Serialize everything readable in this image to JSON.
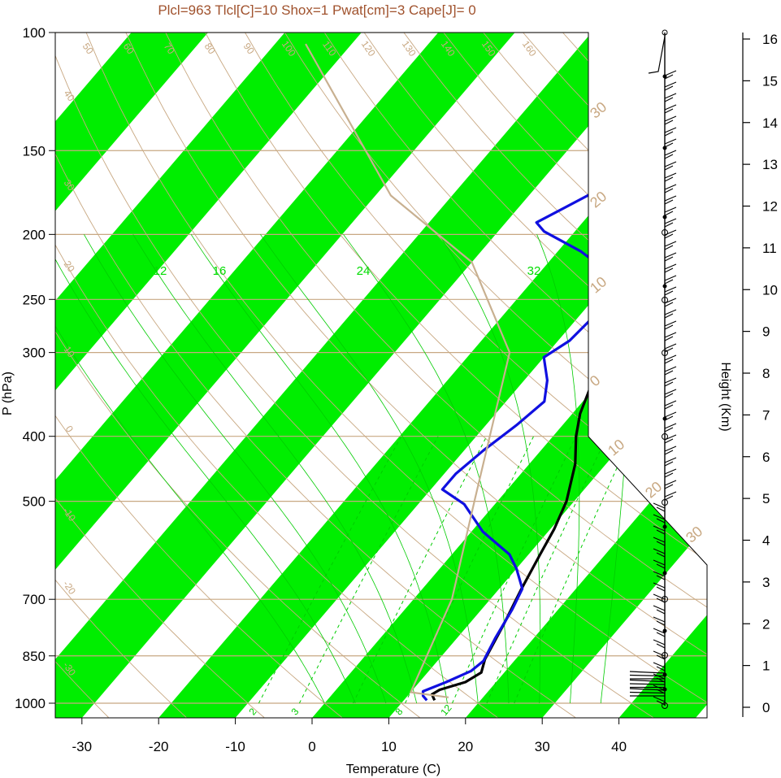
{
  "title": "Plcl=963 Tlcl[C]=10 Shox=1 Pwat[cm]=3 Cape[J]= 0",
  "colors": {
    "band": "#00ee00",
    "isobar": "#c8a882",
    "temperature": "#000000",
    "dewpoint": "#1010e0",
    "parcel": "#c8b090",
    "mixing_ratio": "#00cc00",
    "title": "#a0522d"
  },
  "chart_data": {
    "type": "line",
    "title": "Plcl=963 Tlcl[C]=10 Shox=1 Pwat[cm]=3 Cape[J]= 0",
    "xlabel": "Temperature (C)",
    "ylabel": "P (hPa)",
    "y2label": "Height (Km)",
    "y_scale": "log",
    "y_reversed": true,
    "xlim": [
      -33,
      44
    ],
    "ylim": [
      1050,
      100
    ],
    "x_ticks": [
      -30,
      -20,
      -10,
      0,
      10,
      20,
      30,
      40
    ],
    "y_ticks": [
      100,
      150,
      200,
      250,
      300,
      400,
      500,
      700,
      850,
      1000
    ],
    "height_ticks": [
      0,
      1,
      2,
      3,
      4,
      5,
      6,
      7,
      8,
      9,
      10,
      11,
      12,
      13,
      14,
      15,
      16
    ],
    "isotherm_labels": [
      "50",
      "60",
      "70",
      "80",
      "90",
      "100",
      "110",
      "120",
      "130",
      "140",
      "150",
      "160"
    ],
    "temp_edge_labels": [
      "30",
      "20",
      "10",
      "0",
      "10",
      "20",
      "30",
      "-10",
      "-20",
      "-30"
    ],
    "right_temp_labels": [
      "30",
      "20",
      "10",
      "0",
      "10",
      "20",
      "30"
    ],
    "isotherm_upper_labels": [
      "12",
      "16",
      "24",
      "32"
    ],
    "mixing_ratio_labels": [
      "2",
      "3",
      "8",
      "12"
    ],
    "series": [
      {
        "name": "temperature",
        "points": [
          {
            "t": 14.0,
            "p": 990
          },
          {
            "t": 13.0,
            "p": 970
          },
          {
            "t": 13.5,
            "p": 955
          },
          {
            "t": 16.0,
            "p": 930
          },
          {
            "t": 17.0,
            "p": 900
          },
          {
            "t": 16.0,
            "p": 860
          },
          {
            "t": 14.5,
            "p": 760
          },
          {
            "t": 13.0,
            "p": 680
          },
          {
            "t": 11.5,
            "p": 600
          },
          {
            "t": 10.5,
            "p": 550
          },
          {
            "t": 9.0,
            "p": 500
          },
          {
            "t": 6.0,
            "p": 440
          },
          {
            "t": 3.0,
            "p": 400
          },
          {
            "t": 1.0,
            "p": 370
          },
          {
            "t": -0.5,
            "p": 340
          },
          {
            "t": -2.0,
            "p": 310
          },
          {
            "t": -3.0,
            "p": 285
          },
          {
            "t": -4.0,
            "p": 262
          },
          {
            "t": -4.5,
            "p": 245
          },
          {
            "t": -4.0,
            "p": 235
          },
          {
            "t": -3.0,
            "p": 225
          },
          {
            "t": -1.0,
            "p": 217
          },
          {
            "t": 0.5,
            "p": 205
          },
          {
            "t": 2.0,
            "p": 194
          },
          {
            "t": 4.0,
            "p": 186
          },
          {
            "t": 5.5,
            "p": 178
          },
          {
            "t": 8.0,
            "p": 170
          },
          {
            "t": 10.5,
            "p": 160
          },
          {
            "t": 12.0,
            "p": 153
          },
          {
            "t": 14.0,
            "p": 145
          },
          {
            "t": 17.0,
            "p": 135
          },
          {
            "t": 20.0,
            "p": 126
          },
          {
            "t": 22.0,
            "p": 120
          },
          {
            "t": 23.5,
            "p": 113
          },
          {
            "t": 24.5,
            "p": 108
          },
          {
            "t": 26.0,
            "p": 101
          }
        ]
      },
      {
        "name": "dewpoint",
        "points": [
          {
            "t": 13.0,
            "p": 990
          },
          {
            "t": 12.0,
            "p": 975
          },
          {
            "t": 11.5,
            "p": 960
          },
          {
            "t": 13.5,
            "p": 930
          },
          {
            "t": 15.5,
            "p": 895
          },
          {
            "t": 16.0,
            "p": 865
          },
          {
            "t": 15.0,
            "p": 800
          },
          {
            "t": 14.0,
            "p": 725
          },
          {
            "t": 13.0,
            "p": 675
          },
          {
            "t": 10.0,
            "p": 630
          },
          {
            "t": 7.5,
            "p": 600
          },
          {
            "t": 1.5,
            "p": 555
          },
          {
            "t": -4.0,
            "p": 505
          },
          {
            "t": -8.5,
            "p": 480
          },
          {
            "t": -8.5,
            "p": 455
          },
          {
            "t": -7.5,
            "p": 420
          },
          {
            "t": -6.0,
            "p": 385
          },
          {
            "t": -5.0,
            "p": 355
          },
          {
            "t": -7.0,
            "p": 330
          },
          {
            "t": -10.0,
            "p": 305
          },
          {
            "t": -8.5,
            "p": 288
          },
          {
            "t": -8.0,
            "p": 262
          },
          {
            "t": -9.0,
            "p": 245
          },
          {
            "t": -11.0,
            "p": 228
          },
          {
            "t": -17.0,
            "p": 212
          },
          {
            "t": -24.0,
            "p": 198
          },
          {
            "t": -26.0,
            "p": 192
          },
          {
            "t": -18.0,
            "p": 157
          },
          {
            "t": -5.0,
            "p": 103
          }
        ]
      },
      {
        "name": "parcel",
        "points": [
          {
            "t": 15.5,
            "p": 980
          },
          {
            "t": 10.0,
            "p": 963
          },
          {
            "t": 5.0,
            "p": 700
          },
          {
            "t": -3.0,
            "p": 500
          },
          {
            "t": -15.0,
            "p": 300
          },
          {
            "t": -30.0,
            "p": 220
          },
          {
            "t": -48.0,
            "p": 175
          },
          {
            "t": -76.0,
            "p": 104
          }
        ]
      }
    ]
  }
}
